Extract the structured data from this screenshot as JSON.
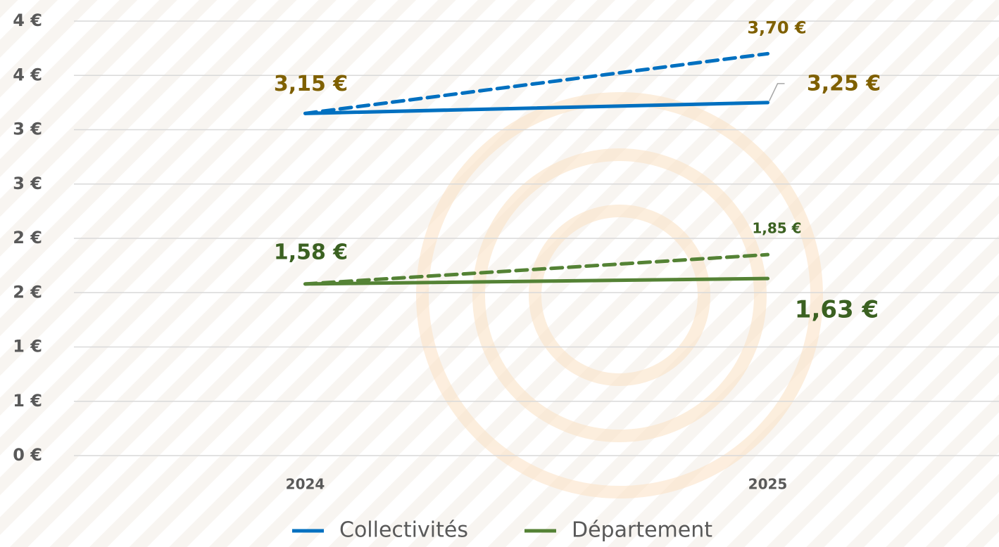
{
  "chart_data": {
    "type": "line",
    "categories": [
      "2024",
      "2025"
    ],
    "series": [
      {
        "name": "Collectivités",
        "color": "#0070c0",
        "values": [
          3.15,
          3.25
        ],
        "value_labels": [
          "3,15 €",
          "3,25 €"
        ],
        "label_color": "#7f6000"
      },
      {
        "color": "#0070c0",
        "dashed": true,
        "values": [
          3.15,
          3.7
        ],
        "value_labels": [
          null,
          "3,70 €"
        ],
        "label_color": "#7f6000"
      },
      {
        "name": "Département",
        "color": "#548235",
        "values": [
          1.58,
          1.63
        ],
        "value_labels": [
          "1,58 €",
          "1,63 €"
        ],
        "label_color": "#3b6121"
      },
      {
        "color": "#548235",
        "dashed": true,
        "values": [
          1.58,
          1.85
        ],
        "value_labels": [
          null,
          "1,85 €"
        ],
        "label_color": "#3b6121"
      }
    ],
    "ylim": [
      0,
      4
    ],
    "yticks": [
      {
        "value": 0,
        "label": "0 €"
      },
      {
        "value": 0.5,
        "label": "1 €"
      },
      {
        "value": 1,
        "label": "1 €"
      },
      {
        "value": 1.5,
        "label": "2 €"
      },
      {
        "value": 2,
        "label": "2 €"
      },
      {
        "value": 2.5,
        "label": "3 €"
      },
      {
        "value": 3,
        "label": "3 €"
      },
      {
        "value": 3.5,
        "label": "4 €"
      },
      {
        "value": 4,
        "label": "4 €"
      }
    ],
    "grid": true,
    "legend": "bottom"
  }
}
